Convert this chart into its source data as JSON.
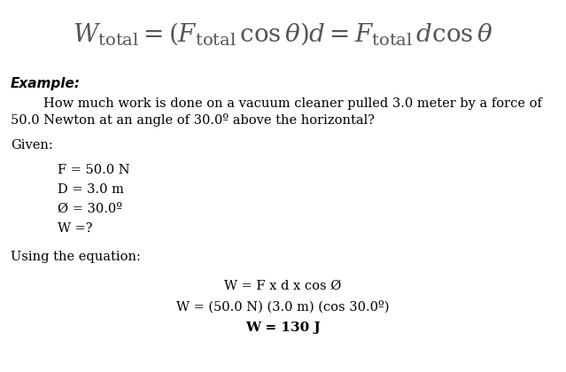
{
  "bg_color": "#ffffff",
  "title_formula": "$W_{\\rm total} = (F_{\\rm total}\\,\\cos\\theta)d = F_{\\rm total}\\,d\\cos\\theta$",
  "title_fontsize": 20,
  "example_label": "Example:",
  "example_fontsize": 11,
  "problem_line1": "        How much work is done on a vacuum cleaner pulled 3.0 meter by a force of",
  "problem_line2": "50.0 Newton at an angle of 30.0º above the horizontal?",
  "problem_fontsize": 10.5,
  "given_label": "Given:",
  "given_fontsize": 10.5,
  "given_items": [
    "F = 50.0 N",
    "D = 3.0 m",
    "Ø = 30.0º",
    "W =?"
  ],
  "given_items_fontsize": 10.5,
  "using_label": "Using the equation:",
  "using_fontsize": 10.5,
  "eq1": "W = F x d x cos Ø",
  "eq1_fontsize": 10.5,
  "eq2": "W = (50.0 N) (3.0 m) (cos 30.0º)",
  "eq2_fontsize": 10.5,
  "eq3": "W = 130 J",
  "eq3_fontsize": 11
}
